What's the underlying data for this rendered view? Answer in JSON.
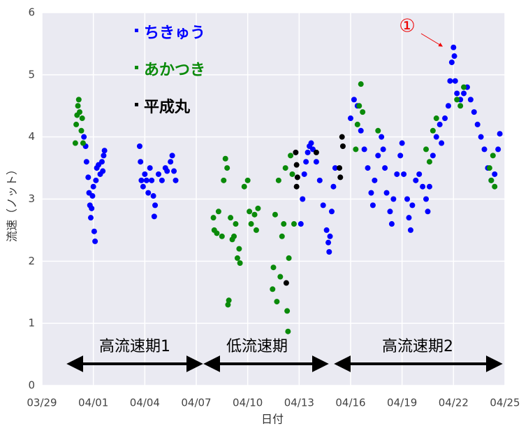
{
  "chart_data": {
    "type": "scatter",
    "xlabel": "日付",
    "ylabel": "流速（ノット）",
    "xlim": [
      0,
      27
    ],
    "xticks": [
      {
        "value": 0,
        "label": "03/29"
      },
      {
        "value": 3,
        "label": "04/01"
      },
      {
        "value": 6,
        "label": "04/04"
      },
      {
        "value": 9,
        "label": "04/07"
      },
      {
        "value": 12,
        "label": "04/10"
      },
      {
        "value": 15,
        "label": "04/13"
      },
      {
        "value": 18,
        "label": "04/16"
      },
      {
        "value": 21,
        "label": "04/19"
      },
      {
        "value": 24,
        "label": "04/22"
      },
      {
        "value": 27,
        "label": "04/25"
      }
    ],
    "ylim": [
      0,
      6
    ],
    "yticks": [
      0,
      1,
      2,
      3,
      4,
      5,
      6
    ],
    "grid": true,
    "legend": "upper left",
    "annotations": [
      "①",
      "高流速期1",
      "低流速期",
      "高流速期2"
    ],
    "series": [
      {
        "name": "ちきゅう",
        "color": "#0000ff",
        "x": [
          2.45,
          2.55,
          2.6,
          2.7,
          2.75,
          2.8,
          2.85,
          2.9,
          2.95,
          3.0,
          3.05,
          3.1,
          3.15,
          3.2,
          3.3,
          3.4,
          3.5,
          3.6,
          3.65,
          3.55,
          5.7,
          5.75,
          5.8,
          5.9,
          6.0,
          6.1,
          6.2,
          6.3,
          6.4,
          6.5,
          6.55,
          6.6,
          6.8,
          7.0,
          7.2,
          7.3,
          7.5,
          7.6,
          7.7,
          7.8,
          15.1,
          15.2,
          15.3,
          15.4,
          15.5,
          15.6,
          15.7,
          15.8,
          16.0,
          16.2,
          16.4,
          16.6,
          16.7,
          16.75,
          16.8,
          16.9,
          17.0,
          17.1,
          18.0,
          18.2,
          18.4,
          18.6,
          18.8,
          19.0,
          19.2,
          19.3,
          19.4,
          19.6,
          19.8,
          19.9,
          20.0,
          20.1,
          20.3,
          20.4,
          20.5,
          20.7,
          20.9,
          21.0,
          21.1,
          21.3,
          21.4,
          21.5,
          21.6,
          21.8,
          22.0,
          22.2,
          22.4,
          22.5,
          22.6,
          22.8,
          23.0,
          23.2,
          23.3,
          23.5,
          23.7,
          23.8,
          23.9,
          24.0,
          24.05,
          24.1,
          24.2,
          24.4,
          24.6,
          24.8,
          25.0,
          25.2,
          25.4,
          25.6,
          25.8,
          26.0,
          26.2,
          26.4,
          26.6,
          26.7
        ],
        "values": [
          4.0,
          3.85,
          3.6,
          3.35,
          3.1,
          2.9,
          2.7,
          2.85,
          3.05,
          3.2,
          2.48,
          2.32,
          3.3,
          3.5,
          3.55,
          3.4,
          3.6,
          3.7,
          3.78,
          3.45,
          3.85,
          3.6,
          3.3,
          3.2,
          3.4,
          3.3,
          3.1,
          3.5,
          3.3,
          3.05,
          2.72,
          2.9,
          3.4,
          3.3,
          3.5,
          3.45,
          3.6,
          3.7,
          3.45,
          3.3,
          2.6,
          3.0,
          3.4,
          3.6,
          3.75,
          3.85,
          3.9,
          3.8,
          3.6,
          3.3,
          2.9,
          2.5,
          2.3,
          2.15,
          2.4,
          2.8,
          3.2,
          3.5,
          4.3,
          4.6,
          4.5,
          4.1,
          3.8,
          3.5,
          3.1,
          2.9,
          3.3,
          3.7,
          4.0,
          3.8,
          3.5,
          3.1,
          2.8,
          2.6,
          3.0,
          3.4,
          3.7,
          3.9,
          3.4,
          3.0,
          2.7,
          2.5,
          2.9,
          3.3,
          3.4,
          3.2,
          3.0,
          2.8,
          3.2,
          3.7,
          4.0,
          4.2,
          3.9,
          4.3,
          4.5,
          4.9,
          5.2,
          5.44,
          5.3,
          4.9,
          4.7,
          4.6,
          4.7,
          4.8,
          4.6,
          4.4,
          4.2,
          4.0,
          3.8,
          3.5,
          3.3,
          3.4,
          3.8,
          4.05
        ]
      },
      {
        "name": "あかつき",
        "color": "#0a8a0a",
        "x": [
          1.95,
          2.0,
          2.05,
          2.1,
          2.15,
          2.2,
          2.3,
          2.4,
          2.35,
          10.0,
          10.05,
          10.2,
          10.3,
          10.5,
          10.6,
          10.7,
          10.8,
          10.85,
          10.9,
          11.0,
          11.1,
          11.2,
          11.3,
          11.4,
          11.5,
          11.55,
          11.8,
          12.0,
          12.1,
          12.2,
          12.4,
          12.5,
          12.6,
          13.5,
          13.6,
          13.7,
          13.8,
          13.9,
          14.0,
          14.1,
          14.2,
          14.3,
          14.35,
          14.4,
          14.5,
          14.6,
          14.7,
          13.45,
          18.3,
          18.4,
          18.5,
          18.6,
          18.7,
          19.6,
          22.4,
          22.6,
          22.8,
          23.0,
          24.2,
          24.4,
          24.6,
          26.1,
          26.2,
          26.3,
          26.4
        ],
        "values": [
          3.9,
          4.2,
          4.35,
          4.5,
          4.6,
          4.4,
          4.1,
          3.9,
          4.3,
          2.7,
          2.5,
          2.45,
          2.8,
          2.4,
          3.3,
          3.65,
          3.5,
          1.3,
          1.37,
          2.7,
          2.35,
          2.4,
          2.6,
          2.05,
          2.2,
          1.97,
          3.2,
          3.3,
          2.8,
          2.6,
          2.75,
          2.5,
          2.85,
          1.9,
          2.75,
          1.35,
          3.3,
          1.75,
          2.4,
          2.6,
          3.5,
          1.2,
          0.87,
          2.05,
          3.7,
          3.4,
          2.6,
          1.55,
          3.8,
          4.2,
          4.5,
          4.85,
          4.4,
          4.1,
          3.8,
          3.6,
          4.1,
          4.3,
          4.6,
          4.5,
          4.8,
          3.5,
          3.3,
          3.7,
          3.2
        ]
      },
      {
        "name": "平成丸",
        "color": "#000000",
        "x": [
          14.25,
          14.8,
          14.85,
          14.9,
          14.85,
          16.0,
          17.35,
          17.4,
          17.5,
          17.55
        ],
        "values": [
          1.65,
          3.75,
          3.55,
          3.35,
          3.2,
          3.75,
          3.5,
          3.35,
          4.0,
          3.85
        ]
      }
    ]
  }
}
